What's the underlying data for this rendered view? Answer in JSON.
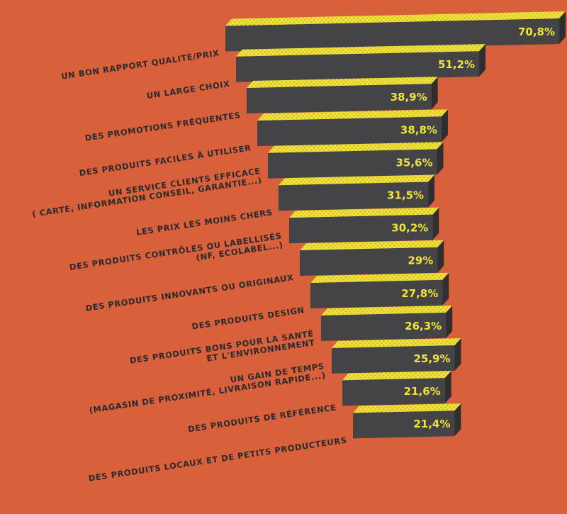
{
  "colors": {
    "background": "#D8603A",
    "bar_top": "#F2E33C",
    "bar_top_dots": "#C9BC24",
    "bar_front": "#444446",
    "bar_side": "#2F2F31",
    "label": "#2B2A2E",
    "value": "#F2E33C"
  },
  "chart_data": {
    "type": "bar",
    "orientation": "horizontal",
    "style": "3d-stacked-perspective",
    "categories": [
      [
        "UN BON RAPPORT QUALITÉ/PRIX"
      ],
      [
        "UN LARGE CHOIX"
      ],
      [
        "DES PROMOTIONS FRÉQUENTES"
      ],
      [
        "DES PRODUITS FACILES À UTILISER"
      ],
      [
        "UN SERVICE CLIENTS EFFICACE",
        "( CARTE, INFORMATION CONSEIL, GARANTIE...)"
      ],
      [
        "LES PRIX LES MOINS CHERS"
      ],
      [
        "DES PRODUITS CONTRÔLÉS OU LABELLISÉS",
        "(NF, ECOLABEL...)"
      ],
      [
        "DES PRODUITS INNOVANTS OU ORIGINAUX"
      ],
      [
        "DES PRODUITS DESIGN"
      ],
      [
        "DES PRODUITS BONS POUR LA SANTÉ",
        "ET L'ENVIRONNEMENT"
      ],
      [
        "UN GAIN DE TEMPS",
        "(MAGASIN DE PROXIMITÉ, LIVRAISON RAPIDE...)"
      ],
      [
        "DES PRODUITS DE RÉFÉRENCE"
      ],
      [
        "DES PRODUITS LOCAUX ET DE PETITS PRODUCTEURS"
      ]
    ],
    "values": [
      70.8,
      51.2,
      38.9,
      38.8,
      35.6,
      31.5,
      30.2,
      29,
      27.8,
      26.3,
      25.9,
      21.6,
      21.4
    ],
    "value_labels": [
      "70,8%",
      "51,2%",
      "38,9%",
      "38,8%",
      "35,6%",
      "31,5%",
      "30,2%",
      "29%",
      "27,8%",
      "26,3%",
      "25,9%",
      "21,6%",
      "21,4%"
    ],
    "unit": "%",
    "title": "",
    "xlabel": "",
    "ylabel": "",
    "grid": false,
    "legend": "none"
  }
}
